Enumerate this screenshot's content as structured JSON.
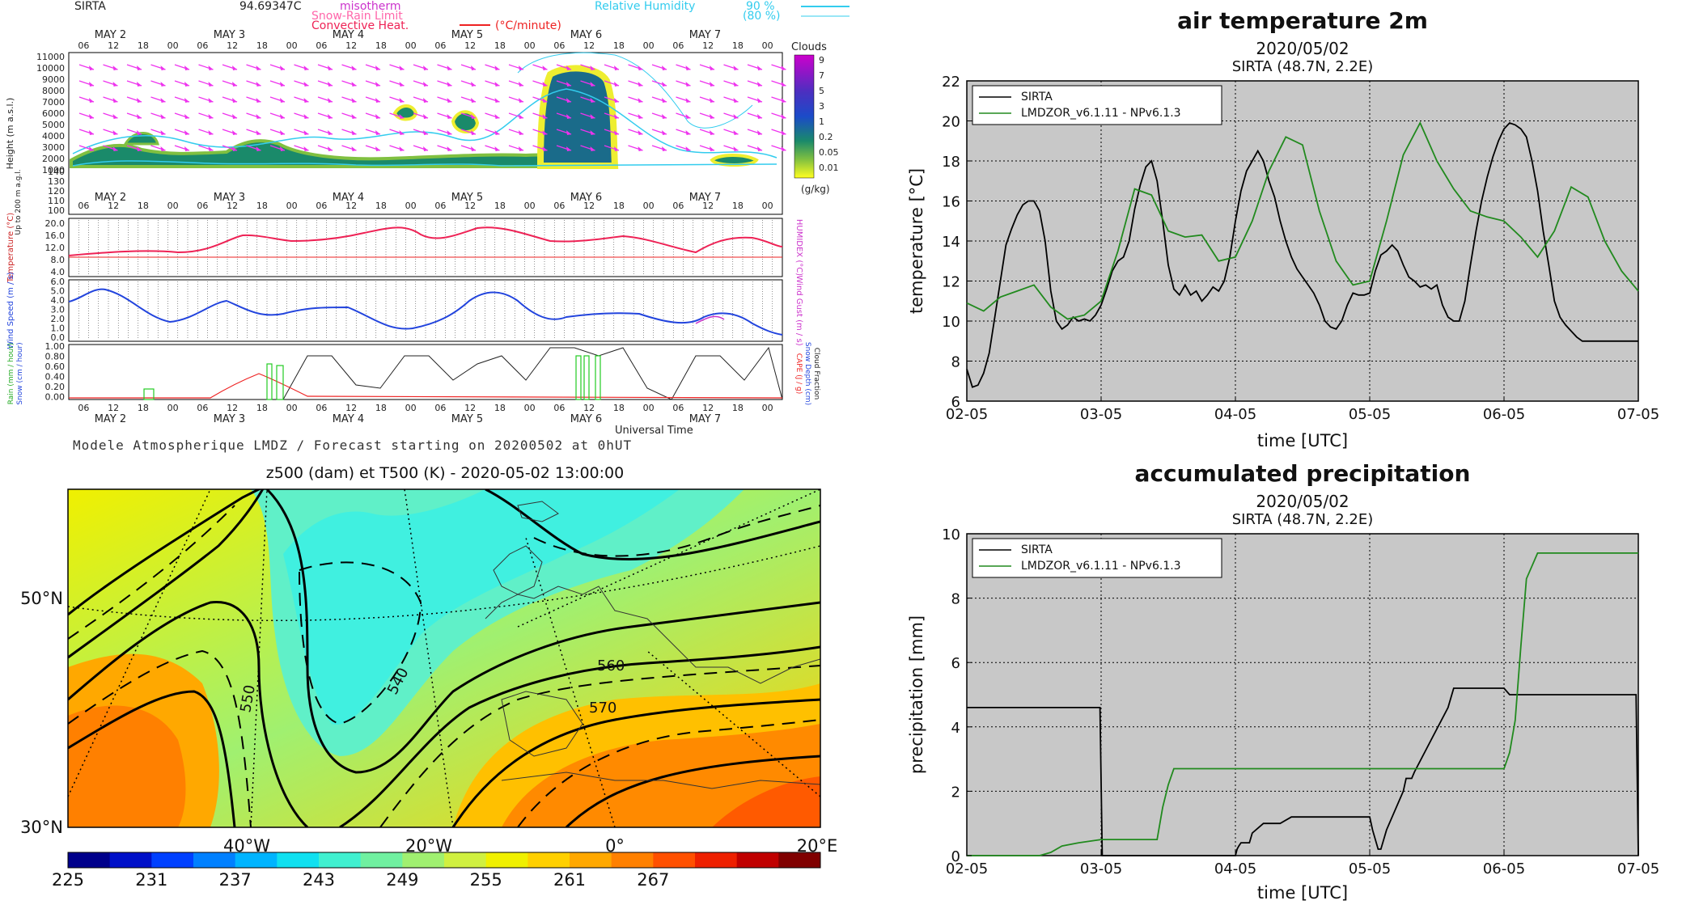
{
  "meteogram": {
    "station": "SIRTA",
    "station_value": "94.69347C",
    "legend": {
      "isotherm": "misotherm",
      "snow_rain": "Snow-Rain Limit",
      "convective": "Convective Heat.",
      "convective_unit": "(°C/minute)",
      "rh_label": "Relative Humidity",
      "rh_90": "90 %",
      "rh_80": "(80 %)"
    },
    "days": [
      "MAY 2",
      "MAY 3",
      "MAY 4",
      "MAY 5",
      "MAY 6",
      "MAY 7"
    ],
    "hours": [
      "06",
      "12",
      "18",
      "00"
    ],
    "height_ticks": [
      "11000",
      "10000",
      "9000",
      "8000",
      "7000",
      "6000",
      "5000",
      "4000",
      "3000",
      "2000",
      "1000",
      "140",
      "130",
      "120",
      "110",
      "100"
    ],
    "height_label": "Height (m a.s.l.)",
    "height_sublabel": "Up to 200 m a.g.l.",
    "clouds_title": "Clouds",
    "clouds_scale": [
      "9",
      "7",
      "5",
      "3",
      "1",
      "0.2",
      "0.05",
      "0.01"
    ],
    "clouds_unit": "(g/kg)",
    "temp_ticks": [
      "20.0",
      "16.0",
      "12.0",
      "8.0",
      "4.0"
    ],
    "temp_label": "Temperature (°C)",
    "humidex_label": "HUMIDEX (°C)",
    "wind_ticks": [
      "6.0",
      "5.0",
      "4.0",
      "3.0",
      "2.0",
      "1.0",
      "0.0"
    ],
    "wind_label": "Wind Speed (m / s)",
    "gust_label": "Wind Gust (m / s)",
    "precip_ticks": [
      "1.00",
      "0.80",
      "0.60",
      "0.40",
      "0.20",
      "0.00"
    ],
    "rain_label": "Rain (mm / hour)",
    "snow_label": "Snow (cm / hour)",
    "cape_label": "CAPE (J / g)",
    "snowdepth_label": "Snow Depth (cm)",
    "cloudfrac_label": "Cloud Fraction",
    "universal_time": "Universal Time",
    "caption": "Modele Atmospherique LMDZ / Forecast starting on 20200502 at 0hUT"
  },
  "map": {
    "title": "z500 (dam) et T500 (K) - 2020-05-02 13:00:00",
    "lat_labels": [
      "50°N",
      "30°N"
    ],
    "lon_labels": [
      "40°W",
      "20°W",
      "0°",
      "20°E"
    ],
    "contour_labels": [
      "550",
      "540",
      "560",
      "570"
    ],
    "colorbar_ticks": [
      "225",
      "231",
      "237",
      "243",
      "249",
      "255",
      "261",
      "267"
    ],
    "colorbar_colors": [
      "#00008b",
      "#0010c8",
      "#0040ff",
      "#0080ff",
      "#00b4ff",
      "#10e0f0",
      "#40f0d0",
      "#70f0a0",
      "#a0f070",
      "#d0f040",
      "#f0f000",
      "#ffd000",
      "#ffa800",
      "#ff8000",
      "#ff5000",
      "#ee2000",
      "#c00000",
      "#800000"
    ]
  },
  "chart_data": [
    {
      "type": "line",
      "title": "air temperature 2m",
      "subtitle1": "2020/05/02",
      "subtitle2": "SIRTA (48.7N, 2.2E)",
      "xlabel": "time [UTC]",
      "ylabel": "temperature [°C]",
      "x_tick_labels": [
        "02-05",
        "03-05",
        "04-05",
        "05-05",
        "06-05",
        "07-05"
      ],
      "y_ticks": [
        6,
        8,
        10,
        12,
        14,
        16,
        18,
        20,
        22
      ],
      "xlim": [
        0,
        120
      ],
      "ylim": [
        6,
        22
      ],
      "grid": true,
      "legend_position": "top-left",
      "series": [
        {
          "name": "SIRTA",
          "color": "#000000",
          "x": [
            0,
            1,
            2,
            3,
            4,
            5,
            6,
            7,
            8,
            9,
            10,
            11,
            12,
            13,
            14,
            15,
            16,
            17,
            18,
            19,
            20,
            21,
            22,
            23,
            24,
            25,
            26,
            27,
            28,
            29,
            30,
            31,
            32,
            33,
            34,
            35,
            36,
            37,
            38,
            39,
            40,
            41,
            42,
            43,
            44,
            45,
            46,
            47,
            48,
            49,
            50,
            51,
            52,
            53,
            54,
            55,
            56,
            57,
            58,
            59,
            60,
            61,
            62,
            63,
            64,
            65,
            66,
            67,
            68,
            69,
            70,
            71,
            72,
            73,
            74,
            75,
            76,
            77,
            78,
            79,
            80,
            81,
            82,
            83,
            84,
            85,
            86,
            87,
            88,
            89,
            90,
            91,
            92,
            93,
            94,
            95,
            96,
            97,
            98,
            99,
            100,
            101,
            102,
            103,
            104,
            105,
            106,
            107,
            108,
            109,
            110,
            111,
            112,
            113,
            114,
            115,
            116,
            117,
            118,
            119,
            120
          ],
          "values": [
            7.6,
            6.7,
            6.8,
            7.4,
            8.4,
            10.2,
            12.0,
            13.8,
            14.6,
            15.3,
            15.8,
            16.0,
            16.0,
            15.5,
            14.0,
            11.5,
            10.0,
            9.6,
            9.8,
            10.2,
            10.0,
            10.1,
            10.0,
            10.3,
            10.8,
            11.6,
            12.5,
            13.0,
            13.2,
            14.0,
            15.6,
            16.8,
            17.7,
            18.0,
            17.0,
            15.0,
            12.8,
            11.6,
            11.3,
            11.8,
            11.3,
            11.5,
            11.0,
            11.3,
            11.7,
            11.5,
            12.0,
            13.2,
            15.0,
            16.5,
            17.5,
            18.0,
            18.5,
            18.0,
            17.0,
            16.2,
            15.0,
            14.0,
            13.2,
            12.6,
            12.2,
            11.8,
            11.4,
            10.8,
            10.0,
            9.7,
            9.6,
            10.0,
            10.8,
            11.4,
            11.3,
            11.3,
            11.4,
            12.5,
            13.3,
            13.5,
            13.8,
            13.5,
            12.8,
            12.2,
            12.0,
            11.7,
            11.8,
            11.6,
            11.8,
            10.8,
            10.2,
            10.0,
            10.0,
            11.0,
            12.8,
            14.5,
            16.0,
            17.2,
            18.2,
            19.0,
            19.6,
            19.9,
            19.8,
            19.6,
            19.2,
            18.0,
            16.5,
            14.5,
            12.8,
            11.0,
            10.2,
            9.8,
            9.5,
            9.2,
            9.0,
            9.0,
            9.0,
            9.0,
            9.0,
            9.0,
            9.0,
            9.0,
            9.0,
            9.0,
            9.0
          ]
        },
        {
          "name": "LMDZOR_v6.1.11 - NPv6.1.3",
          "color": "#218a1e",
          "x": [
            0,
            3,
            6,
            9,
            12,
            15,
            18,
            21,
            24,
            27,
            30,
            33,
            36,
            39,
            42,
            45,
            48,
            51,
            54,
            57,
            60,
            63,
            66,
            69,
            72,
            75,
            78,
            81,
            84,
            87,
            90,
            93,
            96,
            99,
            102,
            105,
            108,
            111,
            114,
            117,
            120
          ],
          "values": [
            10.9,
            10.5,
            11.2,
            11.5,
            11.8,
            10.7,
            10.1,
            10.3,
            11.0,
            13.5,
            16.6,
            16.3,
            14.5,
            14.2,
            14.3,
            13.0,
            13.2,
            15.0,
            17.5,
            19.2,
            18.8,
            15.5,
            13.0,
            11.8,
            12.0,
            15.0,
            18.3,
            19.9,
            18.0,
            16.6,
            15.5,
            15.2,
            15.0,
            14.2,
            13.2,
            14.5,
            16.7,
            16.2,
            14.0,
            12.5,
            11.5
          ]
        }
      ]
    },
    {
      "type": "line",
      "title": "accumulated precipitation",
      "subtitle1": "2020/05/02",
      "subtitle2": "SIRTA (48.7N, 2.2E)",
      "xlabel": "time [UTC]",
      "ylabel": "precipitation [mm]",
      "x_tick_labels": [
        "02-05",
        "03-05",
        "04-05",
        "05-05",
        "06-05",
        "07-05"
      ],
      "y_ticks": [
        0,
        2,
        4,
        6,
        8,
        10
      ],
      "xlim": [
        0,
        120
      ],
      "ylim": [
        0,
        10
      ],
      "grid": true,
      "legend_position": "top-left",
      "series": [
        {
          "name": "SIRTA",
          "color": "#000000",
          "x": [
            0,
            23.8,
            24.2,
            48,
            48.3,
            48.6,
            49,
            50.5,
            51,
            53,
            54,
            56,
            58,
            66,
            66.5,
            67.5,
            68,
            69,
            70,
            72,
            72.5,
            73.5,
            74,
            75,
            76,
            78,
            78.5,
            79.5,
            80,
            86,
            87,
            96,
            97,
            108,
            119.6,
            120
          ],
          "values": [
            4.6,
            4.6,
            0,
            0,
            0.2,
            0.3,
            0.4,
            0.4,
            0.7,
            1.0,
            1.0,
            1.0,
            1.2,
            1.2,
            1.2,
            1.2,
            1.2,
            1.2,
            1.2,
            1.2,
            0.8,
            0.2,
            0.2,
            0.8,
            1.2,
            2.0,
            2.4,
            2.4,
            2.6,
            4.6,
            5.2,
            5.2,
            5.0,
            5.0,
            5.0,
            0
          ]
        },
        {
          "name": "LMDZOR_v6.1.11 - NPv6.1.3",
          "color": "#218a1e",
          "x": [
            0,
            13,
            15,
            17,
            20,
            24,
            26,
            32,
            34,
            35,
            36,
            37,
            38,
            40,
            96,
            97,
            98,
            99,
            100,
            101,
            102,
            120
          ],
          "values": [
            0,
            0,
            0.1,
            0.3,
            0.4,
            0.5,
            0.5,
            0.5,
            0.5,
            1.5,
            2.2,
            2.7,
            2.7,
            2.7,
            2.7,
            3.2,
            4.2,
            6.5,
            8.6,
            9.0,
            9.4,
            9.4
          ]
        }
      ]
    }
  ]
}
